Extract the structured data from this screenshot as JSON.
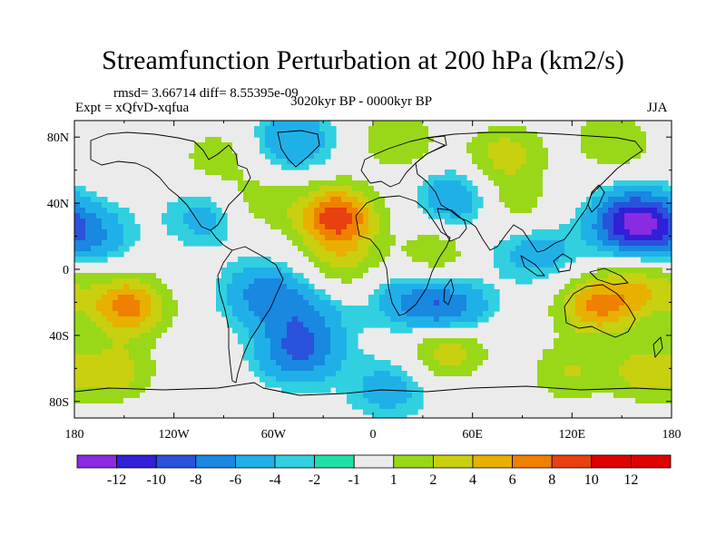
{
  "chart_data": {
    "type": "heatmap",
    "title": "Streamfunction Perturbation at 200 hPa (km2/s)",
    "stats_text": "rmsd= 3.66714 diff= 8.55395e-09",
    "experiment_text": "Expt = xQfvD-xqfua",
    "period_text": "3020kyr BP - 0000kyr BP",
    "season_text": "JJA",
    "xlabel": "",
    "ylabel": "",
    "xlim": [
      -180,
      180
    ],
    "ylim": [
      -90,
      90
    ],
    "x_tick_labels": [
      {
        "lon": -180,
        "label": "180"
      },
      {
        "lon": -120,
        "label": "120W"
      },
      {
        "lon": -60,
        "label": "60W"
      },
      {
        "lon": 0,
        "label": "0"
      },
      {
        "lon": 60,
        "label": "60E"
      },
      {
        "lon": 120,
        "label": "120E"
      },
      {
        "lon": 180,
        "label": "180"
      }
    ],
    "y_tick_labels": [
      {
        "lat": 80,
        "label": "80N"
      },
      {
        "lat": 40,
        "label": "40N"
      },
      {
        "lat": 0,
        "label": "0"
      },
      {
        "lat": -40,
        "label": "40S"
      },
      {
        "lat": -80,
        "label": "80S"
      }
    ],
    "colorbar": {
      "level_labels": [
        "-12",
        "-10",
        "-8",
        "-6",
        "-4",
        "-2",
        "-1",
        "1",
        "2",
        "4",
        "6",
        "8",
        "10",
        "12"
      ],
      "colors": [
        "#8a2be2",
        "#3020d8",
        "#2a52dc",
        "#1888e0",
        "#20b0e8",
        "#30d0e0",
        "#20e0a8",
        "#ebebeb",
        "#98d818",
        "#c8d010",
        "#e8b000",
        "#f08000",
        "#e84010",
        "#e00000"
      ]
    },
    "anomaly_centers": [
      {
        "lon": -170,
        "lat": 20,
        "value": -4
      },
      {
        "lon": -148,
        "lat": -22,
        "value": 9
      },
      {
        "lon": -155,
        "lat": -62,
        "value": 5
      },
      {
        "lon": -95,
        "lat": 68,
        "value": 3
      },
      {
        "lon": -100,
        "lat": 32,
        "value": -3
      },
      {
        "lon": -70,
        "lat": 40,
        "value": 3
      },
      {
        "lon": -48,
        "lat": 78,
        "value": -4
      },
      {
        "lon": -22,
        "lat": 32,
        "value": 11
      },
      {
        "lon": -18,
        "lat": 5,
        "value": 4
      },
      {
        "lon": -65,
        "lat": -15,
        "value": -5
      },
      {
        "lon": -40,
        "lat": -28,
        "value": -3
      },
      {
        "lon": 20,
        "lat": -18,
        "value": -3
      },
      {
        "lon": 45,
        "lat": -25,
        "value": -6
      },
      {
        "lon": -45,
        "lat": -50,
        "value": -6
      },
      {
        "lon": 10,
        "lat": -72,
        "value": -3
      },
      {
        "lon": 45,
        "lat": -48,
        "value": 6
      },
      {
        "lon": 118,
        "lat": -62,
        "value": 4
      },
      {
        "lon": 165,
        "lat": -62,
        "value": 5
      },
      {
        "lon": 15,
        "lat": 78,
        "value": 4
      },
      {
        "lon": 80,
        "lat": 70,
        "value": 5
      },
      {
        "lon": 145,
        "lat": 78,
        "value": 4
      },
      {
        "lon": 50,
        "lat": 43,
        "value": -4
      },
      {
        "lon": 85,
        "lat": 40,
        "value": 3
      },
      {
        "lon": 158,
        "lat": 28,
        "value": -11
      },
      {
        "lon": 100,
        "lat": 10,
        "value": -3
      },
      {
        "lon": 40,
        "lat": 10,
        "value": 4
      },
      {
        "lon": 135,
        "lat": -22,
        "value": 8
      },
      {
        "lon": 165,
        "lat": -12,
        "value": 5
      },
      {
        "lon": 62,
        "lat": 14,
        "value": -1
      }
    ]
  }
}
